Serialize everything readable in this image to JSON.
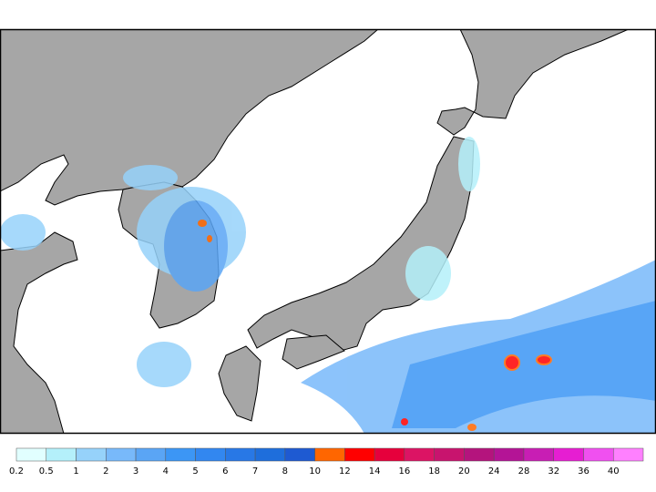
{
  "legend": {
    "labels": [
      0.2,
      0.5,
      1,
      2,
      3,
      4,
      5,
      6,
      7,
      8,
      10,
      12,
      14,
      16,
      18,
      20,
      24,
      28,
      32,
      36,
      40
    ],
    "colors": [
      "#e1ffff",
      "#b4f0fa",
      "#96d2fa",
      "#78b9fa",
      "#5aa5f5",
      "#3c96f5",
      "#3287f0",
      "#2878e6",
      "#1e6edc",
      "#1e5ad2",
      "#ff6600",
      "#ff0000",
      "#e6003c",
      "#dc1464",
      "#c8146e",
      "#b4147d",
      "#b41496",
      "#c81eb4",
      "#e61ed2",
      "#f050f0",
      "#ff80ff"
    ]
  }
}
